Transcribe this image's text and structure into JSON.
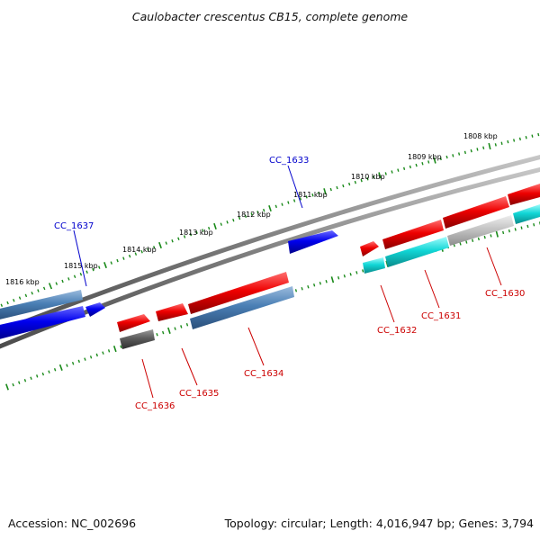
{
  "title": "Caulobacter crescentus CB15, complete genome",
  "footer": {
    "accession": "Accession: NC_002696",
    "summary": "Topology: circular; Length: 4,016,947 bp; Genes: 3,794"
  },
  "scale": {
    "tick_labels": [
      "1816 kbp",
      "1815 kbp",
      "1814 kbp",
      "1813 kbp",
      "1812 kbp",
      "1811 kbp",
      "1810 kbp",
      "1809 kbp",
      "1808 kbp"
    ]
  },
  "colors": {
    "backbone": "#8a8a8a",
    "tick": "#1a8a1a",
    "forward_gene": "#0000ee",
    "reverse_gene": "#ee0000",
    "label_forward": "#0000cc",
    "label_reverse": "#cc0000"
  },
  "gene_labels": {
    "cc1637": "CC_1637",
    "cc1633": "CC_1633",
    "cc1636": "CC_1636",
    "cc1635": "CC_1635",
    "cc1634": "CC_1634",
    "cc1632": "CC_1632",
    "cc1631": "CC_1631",
    "cc1630": "CC_1630"
  }
}
